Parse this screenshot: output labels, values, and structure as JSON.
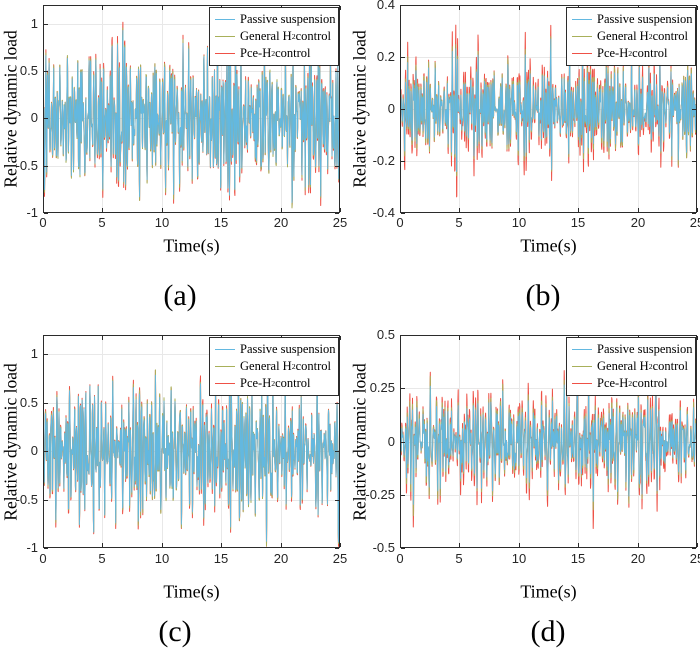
{
  "figure": {
    "title": "",
    "background": "#ffffff",
    "xlabel": "Time(s)",
    "ylabel": "Relative dynamic load",
    "captions": [
      "(a)",
      "(b)",
      "(c)",
      "(d)"
    ]
  },
  "colors": {
    "passive": "#63b8e0",
    "general_h2": "#a8b05a",
    "pce_h2": "#ee5146",
    "grid": "#e8e8e8",
    "axis": "#2b2b2b",
    "tick_text": "#262626"
  },
  "legend": {
    "position": "top-right",
    "entries": [
      {
        "pre": "Passive suspension",
        "sub": "",
        "post": "",
        "color_key": "passive"
      },
      {
        "pre": "General H",
        "sub": "2",
        "post": " control",
        "color_key": "general_h2"
      },
      {
        "pre": "Pce-H",
        "sub": "2",
        "post": " control",
        "color_key": "pce_h2"
      }
    ]
  },
  "chart_data": [
    {
      "id": "a",
      "caption": "(a)",
      "type": "line",
      "xlabel": "Time(s)",
      "ylabel": "Relative dynamic load",
      "xlim": [
        0,
        25
      ],
      "ylim": [
        -1,
        1.2
      ],
      "xticks": [
        0,
        5,
        10,
        15,
        20,
        25
      ],
      "yticks": [
        1,
        0.5,
        0,
        -0.5,
        -1
      ],
      "xtick_labels": [
        "0",
        "5",
        "10",
        "15",
        "20",
        "25"
      ],
      "ytick_labels": [
        "1",
        "0.5",
        "0",
        "-0.5",
        "-1"
      ],
      "grid": true,
      "legend_position": "top-right",
      "description": "Dense broadband random vibration; three nearly identical overlapping traces, passive (blue) body with olive and red peak fringes; peak near 1.02 at t=10.3 s",
      "series": [
        {
          "name": "Pce-H2 control",
          "color": "#ee5146",
          "peak": 1.02,
          "wobble_amp": 0.04,
          "wobble_freq": 0.17,
          "wobble_phase": 2.1
        },
        {
          "name": "General H2 control",
          "color": "#a8b05a",
          "peak": 0.985,
          "wobble_amp": 0.025,
          "wobble_freq": 0.11,
          "wobble_phase": 0.6
        },
        {
          "name": "Passive suspension",
          "color": "#63b8e0",
          "peak": 0.95,
          "wobble_amp": 0.012,
          "wobble_freq": 0.07,
          "wobble_phase": 1.4
        }
      ],
      "synth": {
        "seed": 101,
        "points": 1100,
        "components": 42,
        "freq_min": 0.3,
        "freq_max": 11,
        "center_freq": 5.5,
        "bandwidth": 4
      }
    },
    {
      "id": "b",
      "caption": "(b)",
      "type": "line",
      "xlabel": "Time(s)",
      "ylabel": "Relative dynamic load",
      "xlim": [
        0,
        25
      ],
      "ylim": [
        -0.4,
        0.4
      ],
      "xticks": [
        0,
        5,
        10,
        15,
        20,
        25
      ],
      "yticks": [
        0.4,
        0.2,
        0,
        -0.2,
        -0.4
      ],
      "xtick_labels": [
        "0",
        "5",
        "10",
        "15",
        "20",
        "25"
      ],
      "ytick_labels": [
        "0.4",
        "0.2",
        "0",
        "-0.2",
        "-0.4"
      ],
      "grid": true,
      "legend_position": "top-right",
      "description": "Red Pce-H2 trace extends well past blue passive trace at peaks; red maximum near 0.40 at t=10.4 s, blue peaks near 0.27",
      "series": [
        {
          "name": "Pce-H2 control",
          "color": "#ee5146",
          "peak": 0.35,
          "wobble_amp": 0.12,
          "wobble_freq": 0.19,
          "wobble_phase": 1.2
        },
        {
          "name": "General H2 control",
          "color": "#a8b05a",
          "peak": 0.295,
          "wobble_amp": 0.05,
          "wobble_freq": 0.13,
          "wobble_phase": 0.3
        },
        {
          "name": "Passive suspension",
          "color": "#63b8e0",
          "peak": 0.27,
          "wobble_amp": 0.02,
          "wobble_freq": 0.08,
          "wobble_phase": 2.6
        }
      ],
      "synth": {
        "seed": 202,
        "points": 1100,
        "components": 42,
        "freq_min": 0.3,
        "freq_max": 11,
        "center_freq": 5.5,
        "bandwidth": 4
      }
    },
    {
      "id": "c",
      "caption": "(c)",
      "type": "line",
      "xlabel": "Time(s)",
      "ylabel": "Relative dynamic load",
      "xlim": [
        0,
        25
      ],
      "ylim": [
        -1,
        1.2
      ],
      "xticks": [
        0,
        5,
        10,
        15,
        20,
        25
      ],
      "yticks": [
        1,
        0.5,
        0,
        -0.5,
        -1
      ],
      "xtick_labels": [
        "0",
        "5",
        "10",
        "15",
        "20",
        "25"
      ],
      "ytick_labels": [
        "1",
        "0.5",
        "0",
        "-0.5",
        "-1"
      ],
      "grid": true,
      "legend_position": "top-right",
      "description": "Same style as (a): blue passive body with thin olive and red fringes at extremes; peak near 1.02 at t=10.6 s",
      "series": [
        {
          "name": "Pce-H2 control",
          "color": "#ee5146",
          "peak": 1.02,
          "wobble_amp": 0.04,
          "wobble_freq": 0.15,
          "wobble_phase": 0.9
        },
        {
          "name": "General H2 control",
          "color": "#a8b05a",
          "peak": 0.985,
          "wobble_amp": 0.025,
          "wobble_freq": 0.1,
          "wobble_phase": 2.2
        },
        {
          "name": "Passive suspension",
          "color": "#63b8e0",
          "peak": 0.95,
          "wobble_amp": 0.012,
          "wobble_freq": 0.06,
          "wobble_phase": 0.2
        }
      ],
      "synth": {
        "seed": 303,
        "points": 1100,
        "components": 42,
        "freq_min": 0.3,
        "freq_max": 11,
        "center_freq": 5.5,
        "bandwidth": 4
      }
    },
    {
      "id": "d",
      "caption": "(d)",
      "type": "line",
      "xlabel": "Time(s)",
      "ylabel": "Relative dynamic load",
      "xlim": [
        0,
        25
      ],
      "ylim": [
        -0.5,
        0.5
      ],
      "xticks": [
        0,
        5,
        10,
        15,
        20,
        25
      ],
      "yticks": [
        0.5,
        0.25,
        0,
        -0.25,
        -0.5
      ],
      "xtick_labels": [
        "0",
        "5",
        "10",
        "15",
        "20",
        "25"
      ],
      "ytick_labels": [
        "0.5",
        "0.25",
        "0",
        "-0.25",
        "-0.5"
      ],
      "grid": true,
      "legend_position": "top-right",
      "description": "Red Pce-H2 trace dominates peaks, maximum near 0.42 at t=5.7 s; blue passive peaks near 0.30",
      "series": [
        {
          "name": "Pce-H2 control",
          "color": "#ee5146",
          "peak": 0.4,
          "wobble_amp": 0.08,
          "wobble_freq": 0.18,
          "wobble_phase": 1.8
        },
        {
          "name": "General H2 control",
          "color": "#a8b05a",
          "peak": 0.335,
          "wobble_amp": 0.05,
          "wobble_freq": 0.12,
          "wobble_phase": 0.5
        },
        {
          "name": "Passive suspension",
          "color": "#63b8e0",
          "peak": 0.3,
          "wobble_amp": 0.02,
          "wobble_freq": 0.09,
          "wobble_phase": 2.9
        }
      ],
      "synth": {
        "seed": 404,
        "points": 1100,
        "components": 42,
        "freq_min": 0.3,
        "freq_max": 11,
        "center_freq": 5.5,
        "bandwidth": 4
      }
    }
  ]
}
